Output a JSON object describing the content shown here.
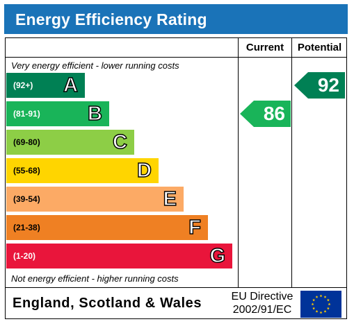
{
  "title": "Energy Efficiency Rating",
  "columns": {
    "current": "Current",
    "potential": "Potential"
  },
  "top_note": "Very energy efficient - lower running costs",
  "bottom_note": "Not energy efficient - higher running costs",
  "footer": {
    "country": "England, Scotland & Wales",
    "directive_line1": "EU Directive",
    "directive_line2": "2002/91/EC"
  },
  "colors": {
    "header": "#1a73b8",
    "A": "#008054",
    "B": "#19b459",
    "C": "#8dce46",
    "D": "#ffd500",
    "E": "#fcaa65",
    "F": "#ef8023",
    "G": "#e9153b",
    "eu_flag": "#003399",
    "eu_star": "#ffcc00"
  },
  "chart_data": {
    "type": "bar",
    "title": "Energy Efficiency Rating",
    "categories": [
      "A",
      "B",
      "C",
      "D",
      "E",
      "F",
      "G"
    ],
    "ranges": [
      "(92+)",
      "(81-91)",
      "(69-80)",
      "(55-68)",
      "(39-54)",
      "(21-38)",
      "(1-20)"
    ],
    "current": {
      "value": 86,
      "band": "B"
    },
    "potential": {
      "value": 92,
      "band": "A"
    }
  }
}
